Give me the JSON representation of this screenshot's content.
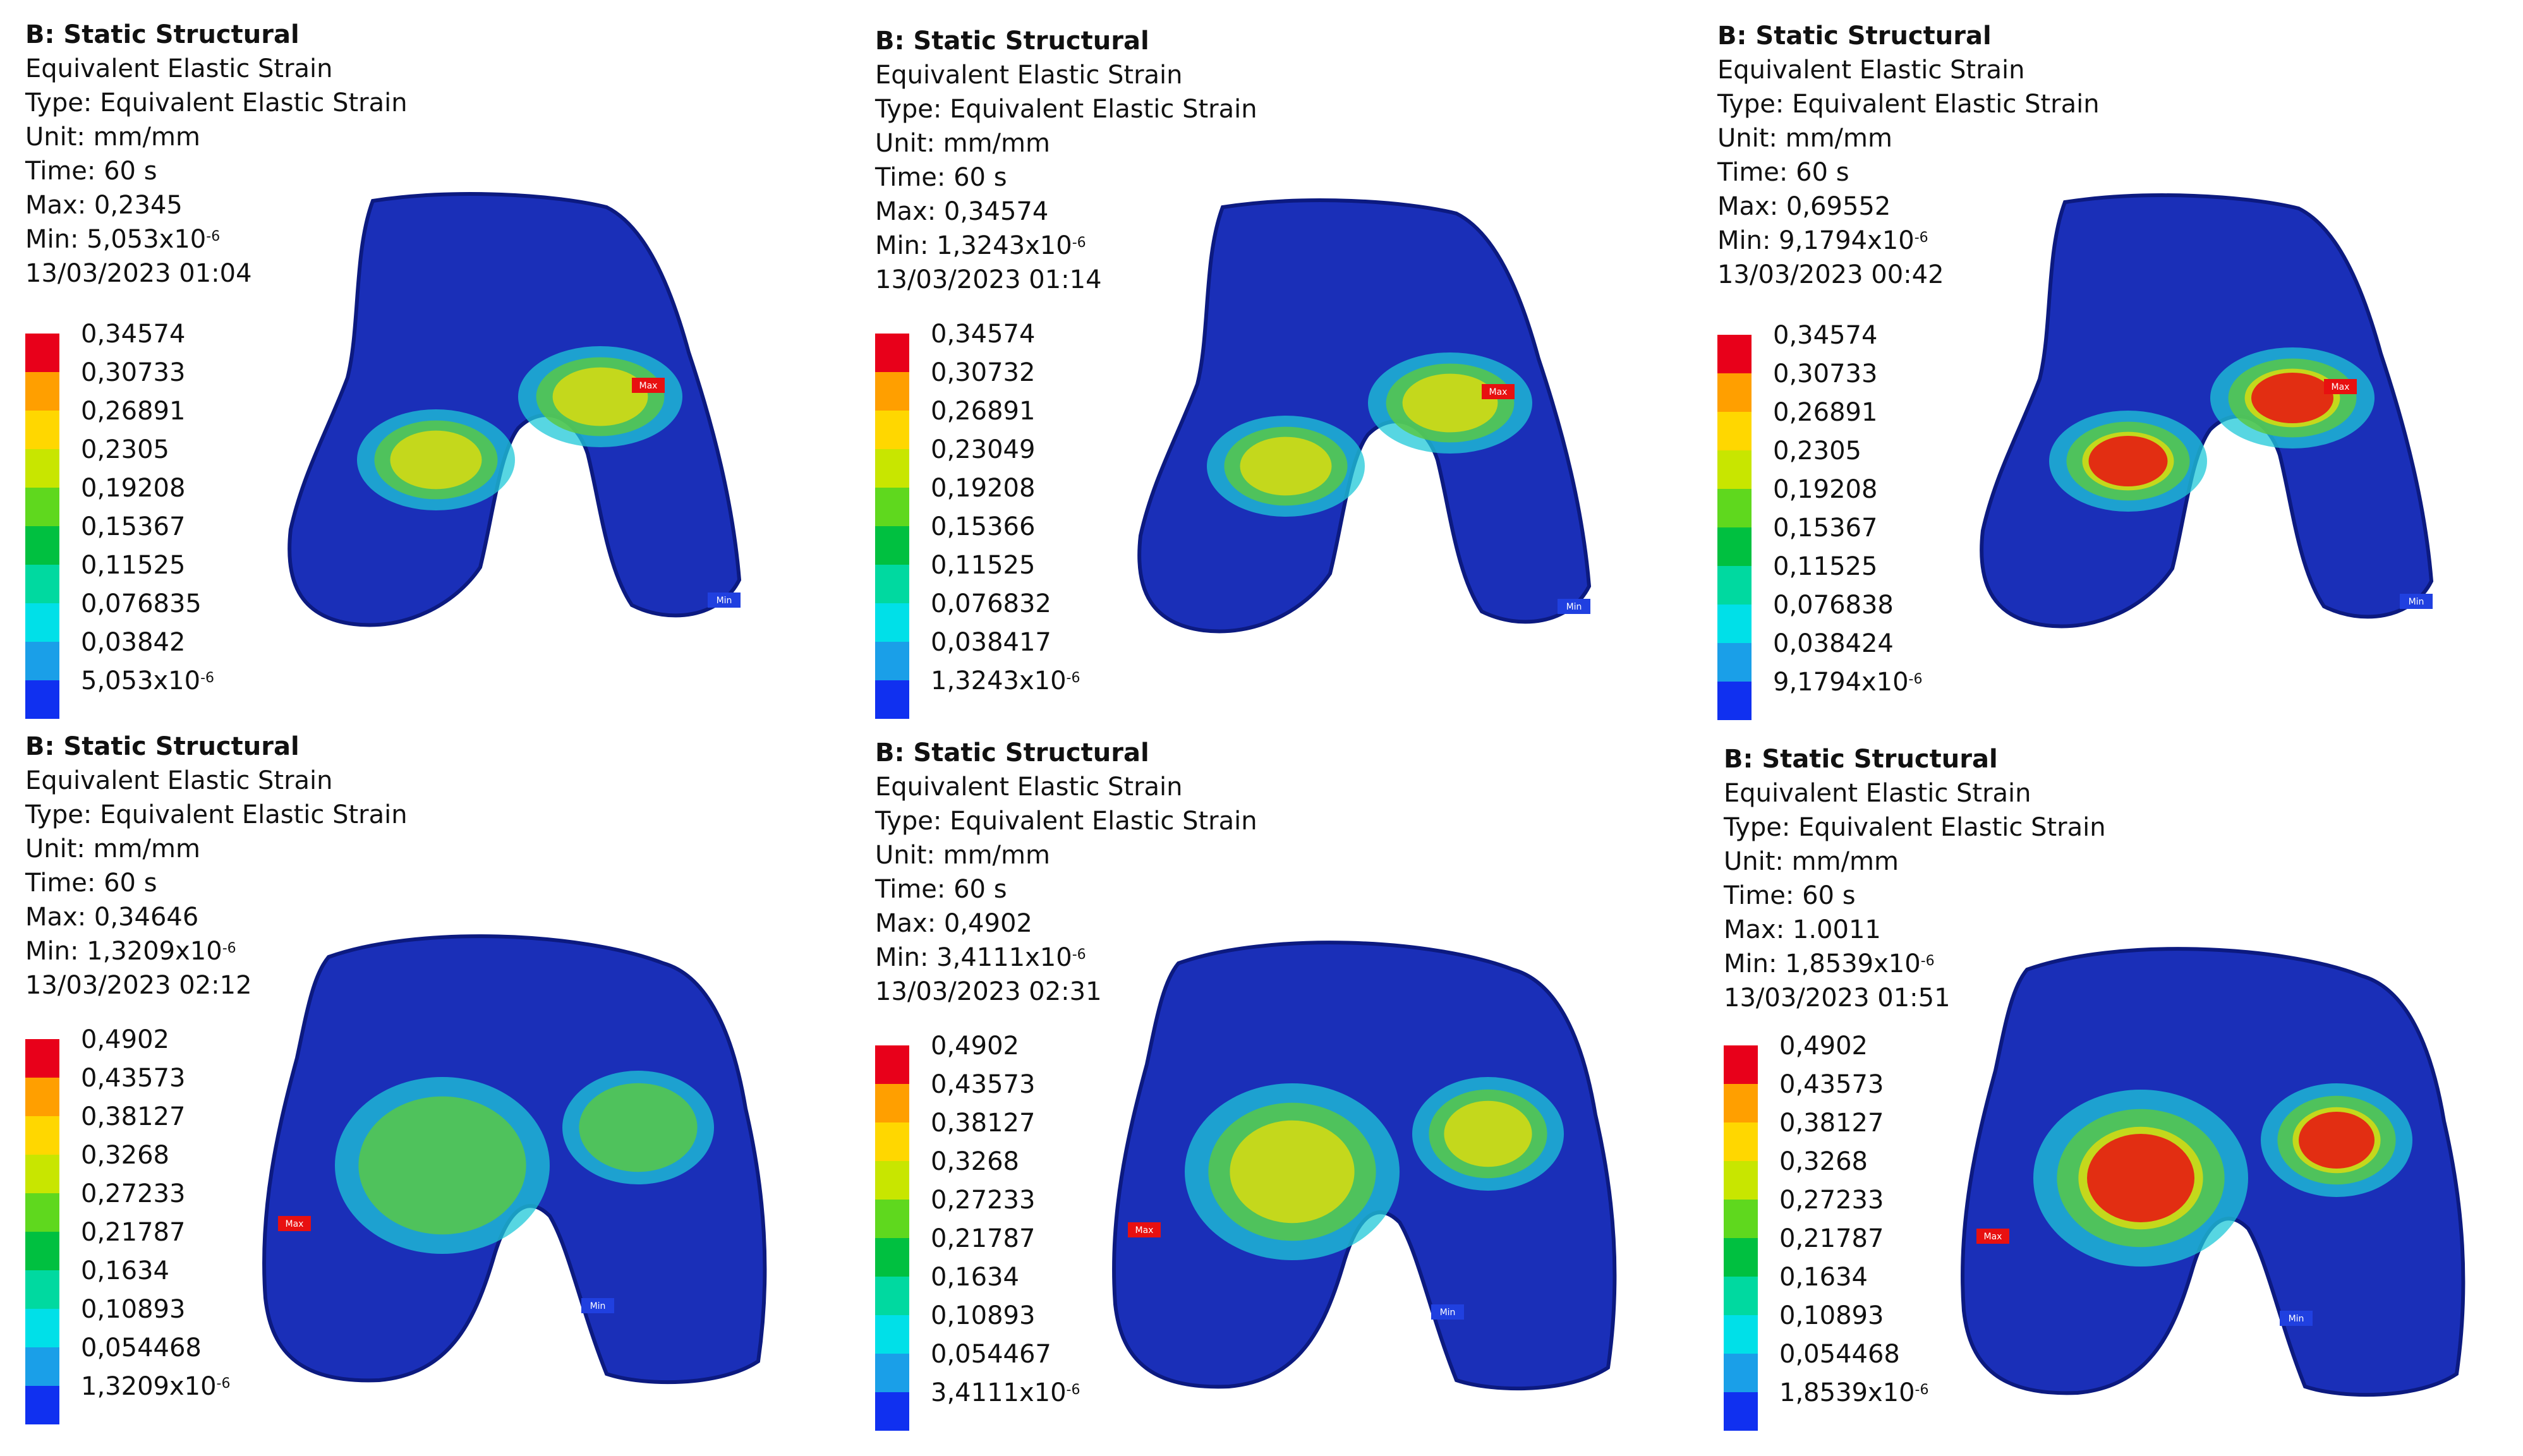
{
  "panels": [
    {
      "header": "B: Static Structural",
      "result": "Equivalent Elastic Strain",
      "type": "Type: Equivalent Elastic Strain",
      "unit": "Unit: mm/mm",
      "time": "Time: 60 s",
      "max": "Max: 0,2345",
      "min_base": "Min: 5,053x10",
      "min_exp": "-6",
      "date": "13/03/2023 01:04",
      "legend": [
        "0,34574",
        "0,30733",
        "0,26891",
        "0,2305",
        "0,19208",
        "0,15367",
        "0,11525",
        "0,076835",
        "0,03842",
        "5,053x10"
      ],
      "legend_exp": "-6",
      "max_tag": "Max",
      "min_tag": "Min",
      "intensity": 0.6
    },
    {
      "header": "B: Static Structural",
      "result": "Equivalent Elastic Strain",
      "type": "Type: Equivalent Elastic Strain",
      "unit": "Unit: mm/mm",
      "time": "Time: 60 s",
      "max": "Max: 0,34574",
      "min_base": "Min: 1,3243x10",
      "min_exp": "-6",
      "date": "13/03/2023 01:14",
      "legend": [
        "0,34574",
        "0,30732",
        "0,26891",
        "0,23049",
        "0,19208",
        "0,15366",
        "0,11525",
        "0,076832",
        "0,038417",
        "1,3243x10"
      ],
      "legend_exp": "-6",
      "max_tag": "Max",
      "min_tag": "Min",
      "intensity": 0.75
    },
    {
      "header": "B: Static Structural",
      "result": "Equivalent Elastic Strain",
      "type": "Type: Equivalent Elastic Strain",
      "unit": "Unit: mm/mm",
      "time": "Time: 60 s",
      "max": "Max: 0,69552",
      "min_base": "Min: 9,1794x10",
      "min_exp": "-6",
      "date": "13/03/2023 00:42",
      "legend": [
        "0,34574",
        "0,30733",
        "0,26891",
        "0,2305",
        "0,19208",
        "0,15367",
        "0,11525",
        "0,076838",
        "0,038424",
        "9,1794x10"
      ],
      "legend_exp": "-6",
      "max_tag": "Max",
      "min_tag": "Min",
      "intensity": 1.0
    },
    {
      "header": "B: Static Structural",
      "result": "Equivalent Elastic Strain",
      "type": "Type: Equivalent Elastic Strain",
      "unit": "Unit: mm/mm",
      "time": "Time: 60 s",
      "max": "Max: 0,34646",
      "min_base": "Min: 1,3209x10",
      "min_exp": "-6",
      "date": "13/03/2023 02:12",
      "legend": [
        "0,4902",
        "0,43573",
        "0,38127",
        "0,3268",
        "0,27233",
        "0,21787",
        "0,1634",
        "0,10893",
        "0,054468",
        "1,3209x10"
      ],
      "legend_exp": "-6",
      "max_tag": "Max",
      "min_tag": "Min",
      "intensity": 0.45
    },
    {
      "header": "B: Static Structural",
      "result": "Equivalent Elastic Strain",
      "type": "Type: Equivalent Elastic Strain",
      "unit": "Unit: mm/mm",
      "time": "Time: 60 s",
      "max": "Max: 0,4902",
      "min_base": "Min: 3,4111x10",
      "min_exp": "-6",
      "date": "13/03/2023 02:31",
      "legend": [
        "0,4902",
        "0,43573",
        "0,38127",
        "0,3268",
        "0,27233",
        "0,21787",
        "0,1634",
        "0,10893",
        "0,054467",
        "3,4111x10"
      ],
      "legend_exp": "-6",
      "max_tag": "Max",
      "min_tag": "Min",
      "intensity": 0.7
    },
    {
      "header": "B: Static Structural",
      "result": "Equivalent Elastic Strain",
      "type": "Type: Equivalent Elastic Strain",
      "unit": "Unit: mm/mm",
      "time": "Time: 60 s",
      "max": "Max: 1.0011",
      "min_base": "Min: 1,8539x10",
      "min_exp": "-6",
      "date": "13/03/2023 01:51",
      "legend": [
        "0,4902",
        "0,43573",
        "0,38127",
        "0,3268",
        "0,27233",
        "0,21787",
        "0,1634",
        "0,10893",
        "0,054468",
        "1,8539x10"
      ],
      "legend_exp": "-6",
      "max_tag": "Max",
      "min_tag": "Min",
      "intensity": 1.0
    }
  ],
  "legend_colors": [
    "#e8001a",
    "#ff9f00",
    "#ffd700",
    "#c8e600",
    "#5fd81e",
    "#00c040",
    "#00d9a0",
    "#00e0e8",
    "#1a9fe8",
    "#1030f0"
  ],
  "colors": {
    "bone_base": "#1a2fb8",
    "bone_dark": "#0c1a80",
    "cyan": "#1fc8d8",
    "green": "#58c848",
    "yellow": "#d8dc10",
    "red": "#e81010",
    "max_tag": "#e81010",
    "min_tag": "#2040e0"
  }
}
